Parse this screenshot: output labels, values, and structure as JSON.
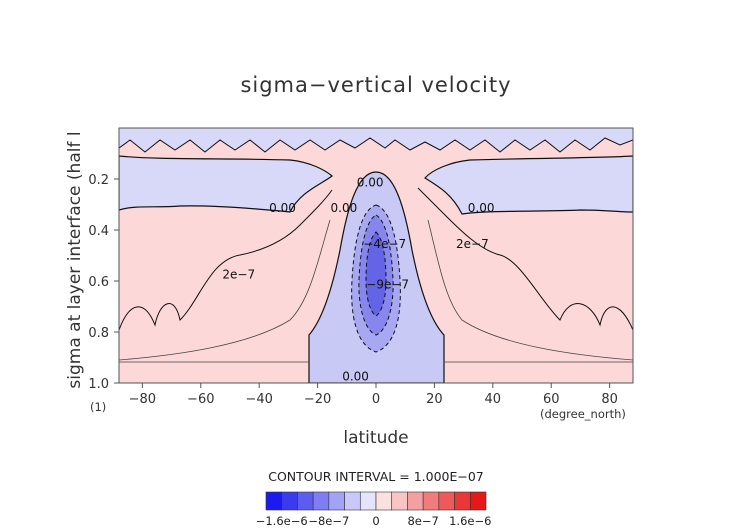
{
  "chart_data": {
    "type": "contour",
    "title": "sigma−vertical velocity",
    "xlabel": "latitude",
    "ylabel": "sigma at layer interface (half l",
    "x_units": "(degree_north)",
    "y_units": "(1)",
    "xlim": [
      -88,
      88
    ],
    "ylim": [
      1.0,
      0.0
    ],
    "x_ticks": [
      {
        "value": -80,
        "label": "−80"
      },
      {
        "value": -60,
        "label": "−60"
      },
      {
        "value": -40,
        "label": "−40"
      },
      {
        "value": -20,
        "label": "−20"
      },
      {
        "value": 0,
        "label": "0"
      },
      {
        "value": 20,
        "label": "20"
      },
      {
        "value": 40,
        "label": "40"
      },
      {
        "value": 60,
        "label": "60"
      },
      {
        "value": 80,
        "label": "80"
      }
    ],
    "y_ticks": [
      {
        "value": 0.2,
        "label": "0.2"
      },
      {
        "value": 0.4,
        "label": "0.4"
      },
      {
        "value": 0.6,
        "label": "0.6"
      },
      {
        "value": 0.8,
        "label": "0.8"
      },
      {
        "value": 1.0,
        "label": "1.0"
      }
    ],
    "contour_interval_text": "CONTOUR INTERVAL = 1.000E−07",
    "contour_labels": [
      {
        "text": "0.00",
        "x": -2,
        "y": 0.23
      },
      {
        "text": "0.00",
        "x": -32,
        "y": 0.33
      },
      {
        "text": "0.00",
        "x": -11,
        "y": 0.33
      },
      {
        "text": "0.00",
        "x": 36,
        "y": 0.33
      },
      {
        "text": "0.00",
        "x": -7,
        "y": 0.99
      },
      {
        "text": "2e−7",
        "x": -47,
        "y": 0.59
      },
      {
        "text": "2e−7",
        "x": 33,
        "y": 0.47
      },
      {
        "text": "−4e−7",
        "x": 3,
        "y": 0.47
      },
      {
        "text": "−9e−7",
        "x": 4,
        "y": 0.63
      }
    ],
    "colorbar": {
      "colors": [
        "#1b1bf0",
        "#3a3aef",
        "#5c5cee",
        "#7e7ef2",
        "#a3a3f6",
        "#c8c8fa",
        "#e4e4fc",
        "#fbe0e0",
        "#f8c4c4",
        "#f4a0a0",
        "#f07c7c",
        "#ec5a5a",
        "#e83838",
        "#e41a1a"
      ],
      "tick_labels": [
        "−1.6e−6",
        "−8e−7",
        "0",
        "8e−7",
        "1.6e−6"
      ]
    }
  }
}
